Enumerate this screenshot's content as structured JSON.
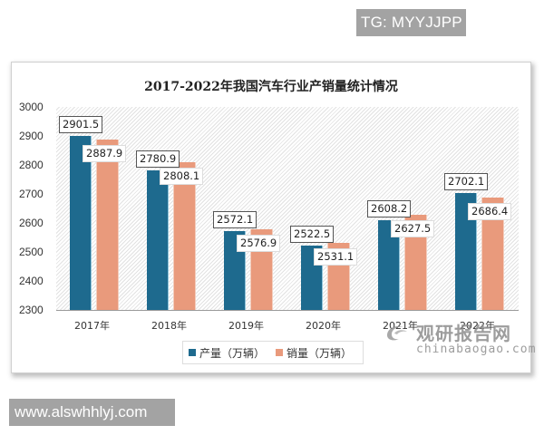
{
  "watermarks": {
    "top_right": "TG: MYYJJPP",
    "bottom_left": "www.alswhhlyj.com",
    "source_logo_cn": "观研报告网",
    "source_logo_en": "chinabaogao.com"
  },
  "colors": {
    "production": "#1e6a8e",
    "sales": "#e99a7c"
  },
  "chart_data": {
    "type": "bar",
    "title": "2017-2022年我国汽车行业产销量统计情况",
    "xlabel": "",
    "ylabel": "",
    "categories": [
      "2017年",
      "2018年",
      "2019年",
      "2020年",
      "2021年",
      "2022年"
    ],
    "series": [
      {
        "name": "产量（万辆）",
        "values": [
          2901.5,
          2780.9,
          2572.1,
          2522.5,
          2608.2,
          2702.1
        ]
      },
      {
        "name": "销量（万辆）",
        "values": [
          2887.9,
          2808.1,
          2576.9,
          2531.1,
          2627.5,
          2686.4
        ]
      }
    ],
    "ylim": [
      2300,
      3000
    ],
    "yticks": [
      "3000",
      "2900",
      "2800",
      "2700",
      "2600",
      "2500",
      "2400",
      "2300"
    ],
    "grid": false,
    "legend_position": "bottom",
    "data_labels": true
  }
}
